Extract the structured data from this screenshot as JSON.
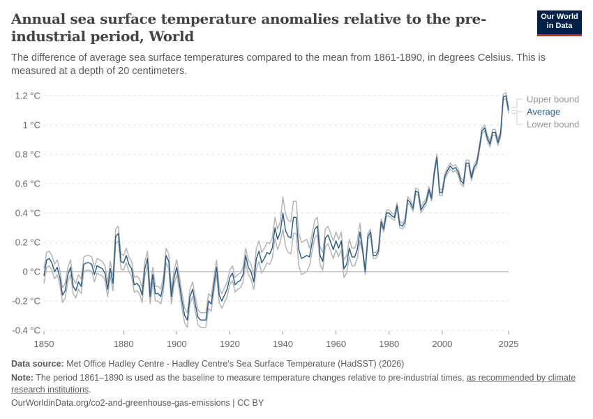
{
  "header": {
    "title": "Annual sea surface temperature anomalies relative to the pre-industrial period, World",
    "subtitle": "The difference of average sea surface temperatures compared to the mean from 1861-1890, in degrees Celsius. This is measured at a depth of 20 centimeters.",
    "logo_line1": "Our World",
    "logo_line2": "in Data"
  },
  "chart_data": {
    "type": "line",
    "title": "Annual sea surface temperature anomalies relative to the pre-industrial period, World",
    "xlabel": "",
    "ylabel": "",
    "x_start": 1850,
    "x_end": 2025,
    "xlim": [
      1850,
      2025
    ],
    "ylim": [
      -0.4,
      1.2
    ],
    "x_ticks": [
      "1850",
      "1880",
      "1900",
      "1920",
      "1940",
      "1960",
      "1980",
      "2000",
      "2025"
    ],
    "y_ticks": [
      "-0.4 °C",
      "-0.2 °C",
      "0 °C",
      "0.2 °C",
      "0.4 °C",
      "0.6 °C",
      "0.8 °C",
      "1 °C",
      "1.2 °C"
    ],
    "y_tick_values": [
      -0.4,
      -0.2,
      0,
      0.2,
      0.4,
      0.6,
      0.8,
      1.0,
      1.2
    ],
    "grid": true,
    "legend": "right",
    "colors": {
      "average": "#2d5f8a",
      "bounds": "#b5b5b5",
      "zero_line": "#999999",
      "grid": "#dddddd"
    },
    "series": [
      {
        "name": "Upper bound",
        "values": [
          0.02,
          0.13,
          0.14,
          0.11,
          0.05,
          0.08,
          0.01,
          -0.11,
          -0.08,
          0.03,
          0.08,
          -0.05,
          -0.08,
          -0.02,
          -0.05,
          0.1,
          0.11,
          0.11,
          0.1,
          0.03,
          0.09,
          0.08,
          0.07,
          0.04,
          -0.07,
          0.07,
          -0.03,
          0.29,
          0.31,
          0.12,
          0.11,
          0.16,
          0.1,
          0.07,
          -0.04,
          -0.03,
          -0.05,
          -0.11,
          0.07,
          0.14,
          -0.12,
          0.03,
          -0.1,
          -0.1,
          -0.12,
          -0.03,
          0.16,
          0.12,
          -0.12,
          0.01,
          0.08,
          -0.03,
          -0.15,
          -0.25,
          -0.28,
          -0.12,
          -0.07,
          -0.17,
          -0.26,
          -0.28,
          -0.28,
          -0.28,
          -0.15,
          -0.17,
          -0.04,
          0.08,
          -0.11,
          -0.15,
          -0.11,
          -0.07,
          0.01,
          0.04,
          -0.04,
          -0.02,
          -0.01,
          0.03,
          0.16,
          0.08,
          0.05,
          -0.02,
          0.16,
          0.21,
          0.13,
          0.16,
          0.2,
          0.19,
          0.23,
          0.37,
          0.29,
          0.34,
          0.51,
          0.39,
          0.35,
          0.34,
          0.48,
          0.48,
          0.26,
          0.2,
          0.21,
          0.22,
          0.16,
          0.26,
          0.35,
          0.37,
          0.17,
          0.13,
          0.29,
          0.31,
          0.26,
          0.21,
          0.27,
          0.22,
          0.27,
          0.08,
          0.11,
          0.22,
          0.16,
          0.16,
          0.21,
          0.33,
          0.17,
          0.02,
          0.26,
          0.29,
          0.13,
          0.13,
          0.16,
          0.36,
          0.31,
          0.42,
          0.42,
          0.4,
          0.39,
          0.47,
          0.34,
          0.33,
          0.36,
          0.51,
          0.49,
          0.45,
          0.57,
          0.56,
          0.44,
          0.47,
          0.5,
          0.58,
          0.52,
          0.69,
          0.8,
          0.56,
          0.56,
          0.67,
          0.71,
          0.74,
          0.72,
          0.73,
          0.7,
          0.64,
          0.62,
          0.76,
          0.76,
          0.66,
          0.73,
          0.76,
          0.86,
          0.98,
          1.0,
          0.93,
          0.89,
          0.97,
          0.97,
          0.9,
          0.96,
          1.21,
          1.22,
          1.12
        ]
      },
      {
        "name": "Average",
        "values": [
          -0.03,
          0.08,
          0.09,
          0.06,
          0.0,
          0.03,
          -0.04,
          -0.16,
          -0.13,
          -0.02,
          0.03,
          -0.1,
          -0.13,
          -0.07,
          -0.1,
          0.05,
          0.06,
          0.06,
          0.05,
          -0.02,
          0.04,
          0.03,
          0.02,
          -0.01,
          -0.12,
          0.02,
          -0.08,
          0.24,
          0.26,
          0.07,
          0.06,
          0.11,
          0.05,
          0.02,
          -0.09,
          -0.08,
          -0.1,
          -0.16,
          0.02,
          0.09,
          -0.17,
          -0.02,
          -0.15,
          -0.15,
          -0.17,
          -0.08,
          0.11,
          0.07,
          -0.17,
          -0.04,
          0.03,
          -0.08,
          -0.2,
          -0.3,
          -0.33,
          -0.17,
          -0.12,
          -0.22,
          -0.31,
          -0.33,
          -0.33,
          -0.33,
          -0.2,
          -0.22,
          -0.09,
          0.03,
          -0.16,
          -0.2,
          -0.16,
          -0.12,
          -0.04,
          -0.01,
          -0.09,
          -0.07,
          -0.06,
          -0.02,
          0.11,
          0.03,
          0.0,
          -0.07,
          0.09,
          0.14,
          0.06,
          0.09,
          0.13,
          0.12,
          0.16,
          0.3,
          0.22,
          0.27,
          0.4,
          0.28,
          0.24,
          0.23,
          0.37,
          0.37,
          0.15,
          0.09,
          0.1,
          0.11,
          0.1,
          0.2,
          0.29,
          0.31,
          0.11,
          0.07,
          0.23,
          0.25,
          0.2,
          0.15,
          0.21,
          0.16,
          0.21,
          0.02,
          0.05,
          0.16,
          0.1,
          0.1,
          0.15,
          0.27,
          0.15,
          0.0,
          0.24,
          0.27,
          0.11,
          0.11,
          0.14,
          0.34,
          0.29,
          0.4,
          0.4,
          0.38,
          0.37,
          0.45,
          0.32,
          0.31,
          0.34,
          0.49,
          0.47,
          0.43,
          0.55,
          0.54,
          0.42,
          0.45,
          0.48,
          0.56,
          0.5,
          0.67,
          0.78,
          0.54,
          0.54,
          0.65,
          0.69,
          0.72,
          0.7,
          0.71,
          0.68,
          0.62,
          0.6,
          0.74,
          0.74,
          0.64,
          0.71,
          0.74,
          0.84,
          0.96,
          0.98,
          0.91,
          0.87,
          0.95,
          0.95,
          0.88,
          0.94,
          1.19,
          1.2,
          1.1
        ]
      },
      {
        "name": "Lower bound",
        "values": [
          -0.08,
          0.03,
          0.04,
          0.01,
          -0.05,
          -0.02,
          -0.09,
          -0.21,
          -0.18,
          -0.07,
          -0.02,
          -0.15,
          -0.18,
          -0.12,
          -0.15,
          0.0,
          0.01,
          0.01,
          0.0,
          -0.07,
          -0.01,
          -0.02,
          -0.03,
          -0.06,
          -0.17,
          -0.03,
          -0.13,
          0.19,
          0.21,
          0.02,
          0.01,
          0.06,
          0.0,
          -0.03,
          -0.14,
          -0.13,
          -0.15,
          -0.21,
          -0.03,
          0.04,
          -0.22,
          -0.07,
          -0.2,
          -0.2,
          -0.22,
          -0.13,
          0.06,
          0.02,
          -0.22,
          -0.09,
          -0.02,
          -0.13,
          -0.25,
          -0.35,
          -0.38,
          -0.22,
          -0.17,
          -0.27,
          -0.36,
          -0.38,
          -0.38,
          -0.38,
          -0.25,
          -0.27,
          -0.14,
          -0.02,
          -0.21,
          -0.25,
          -0.21,
          -0.17,
          -0.09,
          -0.06,
          -0.14,
          -0.12,
          -0.11,
          -0.07,
          0.06,
          -0.02,
          -0.05,
          -0.12,
          0.02,
          0.07,
          -0.01,
          0.02,
          0.06,
          0.05,
          0.09,
          0.23,
          0.15,
          0.2,
          0.29,
          0.17,
          0.13,
          0.12,
          0.26,
          0.26,
          0.04,
          -0.02,
          -0.01,
          0.0,
          0.04,
          0.14,
          0.23,
          0.25,
          0.05,
          0.01,
          0.17,
          0.19,
          0.14,
          0.09,
          0.15,
          0.1,
          0.15,
          -0.04,
          -0.01,
          0.1,
          0.04,
          0.04,
          0.09,
          0.21,
          0.13,
          -0.02,
          0.22,
          0.25,
          0.09,
          0.09,
          0.12,
          0.32,
          0.27,
          0.38,
          0.38,
          0.36,
          0.35,
          0.43,
          0.3,
          0.29,
          0.32,
          0.47,
          0.45,
          0.41,
          0.53,
          0.52,
          0.4,
          0.43,
          0.46,
          0.54,
          0.48,
          0.65,
          0.76,
          0.52,
          0.52,
          0.63,
          0.67,
          0.7,
          0.68,
          0.69,
          0.66,
          0.6,
          0.58,
          0.72,
          0.72,
          0.62,
          0.69,
          0.72,
          0.82,
          0.94,
          0.96,
          0.89,
          0.85,
          0.93,
          0.93,
          0.86,
          0.92,
          1.17,
          1.18,
          1.08
        ]
      }
    ]
  },
  "footer": {
    "source_label": "Data source:",
    "source_text": "Met Office Hadley Centre - Hadley Centre's Sea Surface Temperature (HadSST) (2026)",
    "note_label": "Note:",
    "note_text": "The period 1861–1890 is used as the baseline to measure temperature changes relative to pre-industrial times, ",
    "note_link": "as recommended by climate research institutions",
    "note_end": ".",
    "url": "OurWorldinData.org/co2-and-greenhouse-gas-emissions | CC BY"
  }
}
